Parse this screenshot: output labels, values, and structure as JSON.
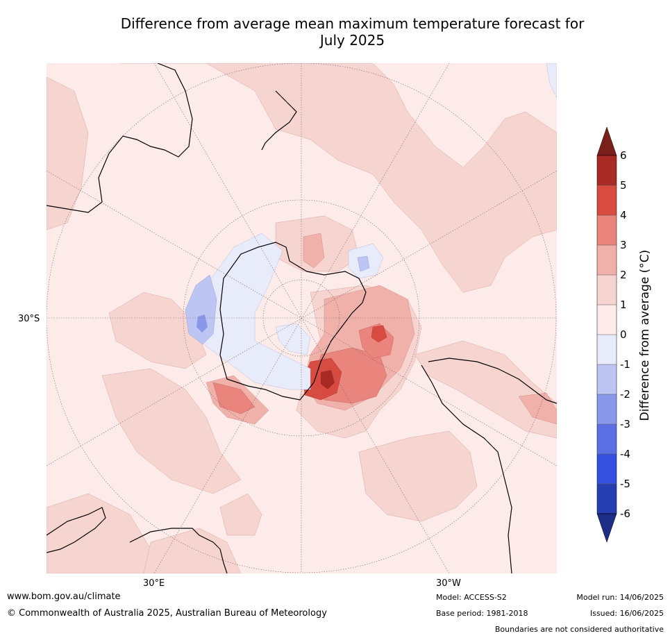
{
  "title_line1": "Difference from average mean maximum temperature forecast for",
  "title_line2": "July 2025",
  "labels": {
    "lat_30s": "30°S",
    "lon_30e": "30°E",
    "lon_30w": "30°W"
  },
  "colorbar": {
    "label": "Difference from average ($^\\circ$C)",
    "label_text": "Difference from average (°C)",
    "ticks": [
      "6",
      "5",
      "4",
      "3",
      "2",
      "1",
      "0",
      "-1",
      "-2",
      "-3",
      "-4",
      "-5",
      "-6"
    ],
    "colors": {
      "over": "#7a1f1a",
      "5_6": "#a72a24",
      "4_5": "#d84b40",
      "3_4": "#e9857d",
      "2_3": "#efb1aa",
      "1_2": "#f6d4d0",
      "0_1": "#fcebe8",
      "m1_0": "#e8ebfa",
      "m2_m1": "#bdc5f2",
      "m3_m2": "#8a98ea",
      "m4_m3": "#5b6fe3",
      "m5_m4": "#3550de",
      "m6_m5": "#263fb0",
      "under": "#1c2e87"
    }
  },
  "footer": {
    "url": "www.bom.gov.au/climate",
    "copyright": "© Commonwealth of Australia 2025, Australian Bureau of Meteorology",
    "model": "Model: ACCESS-S2",
    "base_period": "Base period: 1981-2018",
    "model_run": "Model run: 14/06/2025",
    "issued": "Issued: 16/06/2025",
    "boundaries": "Boundaries are not considered authoritative"
  }
}
